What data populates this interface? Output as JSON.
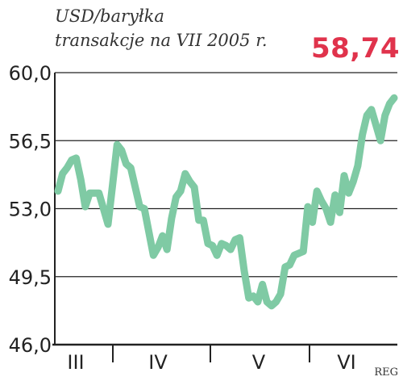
{
  "chart_data": {
    "type": "line",
    "title": "USD/baryłka",
    "subtitle": "transakcje na VII 2005 r.",
    "last_value_label": "58,74",
    "credit": "REG",
    "ylim": [
      46.0,
      60.0
    ],
    "yticks": [
      "60,0",
      "56,5",
      "53,0",
      "49,5",
      "46,0"
    ],
    "ytick_values": [
      60.0,
      56.5,
      53.0,
      49.5,
      46.0
    ],
    "xticks": [
      "III",
      "IV",
      "V",
      "VI"
    ],
    "grid": true,
    "line_color": "#7fcaa4",
    "accent_color": "#e0334c",
    "series": [
      {
        "values": [
          53.9,
          54.8,
          55.1,
          55.5,
          55.6,
          54.5,
          53.1,
          53.8,
          53.8,
          53.8,
          53.0,
          52.2,
          54.2,
          56.3,
          56.0,
          55.3,
          55.1,
          54.1,
          53.1,
          53.0,
          51.8,
          50.6,
          51.0,
          51.6,
          50.9,
          52.5,
          53.6,
          53.9,
          54.8,
          54.4,
          54.1,
          52.4,
          52.4,
          51.2,
          51.1,
          50.6,
          51.2,
          51.1,
          50.9,
          51.4,
          51.5,
          49.8,
          48.4,
          48.5,
          48.2,
          49.1,
          48.2,
          48.0,
          48.2,
          48.6,
          50.0,
          50.1,
          50.6,
          50.7,
          50.8,
          53.1,
          52.3,
          53.9,
          53.4,
          53.0,
          52.3,
          53.7,
          52.8,
          54.7,
          53.8,
          54.4,
          55.2,
          56.8,
          57.8,
          58.1,
          57.3,
          56.5,
          57.8,
          58.4,
          58.7
        ]
      }
    ]
  }
}
